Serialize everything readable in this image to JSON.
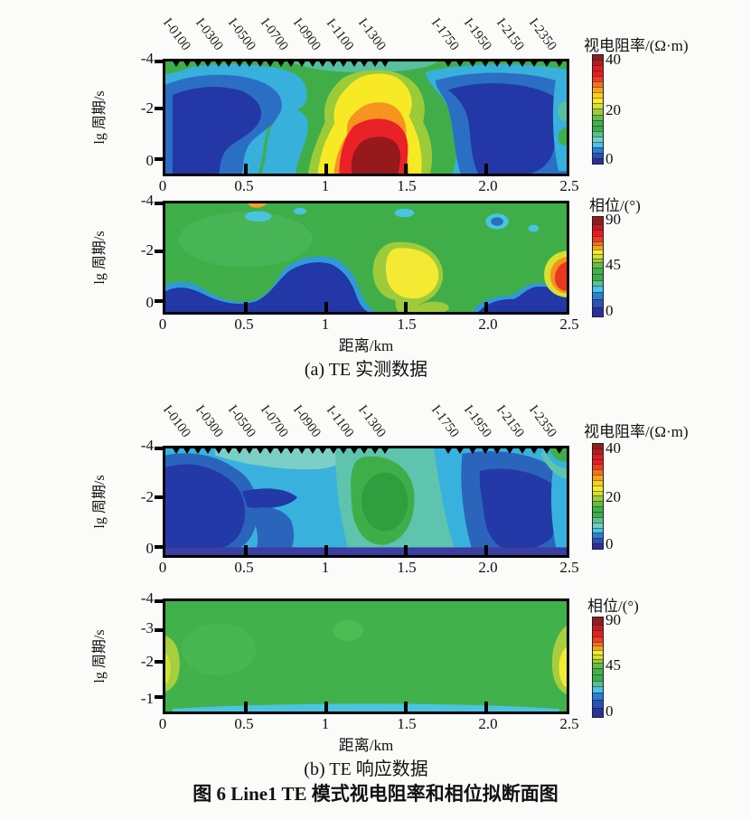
{
  "figure": {
    "caption": "图 6  Line1 TE 模式视电阻率和相位拟断面图",
    "panel_a_label": "(a) TE 实测数据",
    "panel_b_label": "(b) TE 响应数据",
    "x_axis_label": "距离/km",
    "y_axis_label": "lg 周期/s"
  },
  "stations": {
    "labels": [
      {
        "name": "I-0100",
        "km": 0.1
      },
      {
        "name": "I-0300",
        "km": 0.3
      },
      {
        "name": "I-0500",
        "km": 0.5
      },
      {
        "name": "I-0700",
        "km": 0.7
      },
      {
        "name": "I-0900",
        "km": 0.9
      },
      {
        "name": "I-1100",
        "km": 1.1
      },
      {
        "name": "I-1300",
        "km": 1.3
      },
      {
        "name": "I-1750",
        "km": 1.75
      },
      {
        "name": "I-1950",
        "km": 1.95
      },
      {
        "name": "I-2150",
        "km": 2.15
      },
      {
        "name": "I-2350",
        "km": 2.35
      }
    ],
    "triangles_km": {
      "group1": [
        0.07,
        0.135,
        0.2,
        0.265,
        0.33,
        0.395,
        0.46,
        0.525,
        0.59,
        0.655,
        0.72,
        0.785,
        0.85,
        0.915,
        0.98,
        1.045,
        1.11,
        1.175,
        1.24,
        1.305,
        1.37
      ],
      "group2": [
        1.76,
        1.837,
        1.914,
        1.991,
        2.068,
        2.145,
        2.222,
        2.299,
        2.376,
        2.453
      ]
    }
  },
  "colorbars": {
    "resistivity": {
      "title": "视电阻率/(Ω·m)",
      "ticks": [
        {
          "label": "40",
          "pct": 5
        },
        {
          "label": "20",
          "pct": 51
        },
        {
          "label": "0",
          "pct": 95
        }
      ],
      "segments": [
        {
          "c": "#8f1d1f",
          "h": 5
        },
        {
          "c": "#b51d20",
          "h": 5
        },
        {
          "c": "#d91e24",
          "h": 5
        },
        {
          "c": "#e81c24",
          "h": 5
        },
        {
          "c": "#ef3b24",
          "h": 5
        },
        {
          "c": "#f4701f",
          "h": 5
        },
        {
          "c": "#f9a11d",
          "h": 5
        },
        {
          "c": "#f9ce20",
          "h": 5
        },
        {
          "c": "#f7ea25",
          "h": 5
        },
        {
          "c": "#d7df2f",
          "h": 5
        },
        {
          "c": "#9ccb3a",
          "h": 5
        },
        {
          "c": "#69bc41",
          "h": 5
        },
        {
          "c": "#3fb34a",
          "h": 5
        },
        {
          "c": "#3aae47",
          "h": 5
        },
        {
          "c": "#57c28a",
          "h": 5
        },
        {
          "c": "#72ccc3",
          "h": 5
        },
        {
          "c": "#45c3e8",
          "h": 5
        },
        {
          "c": "#2a7fd0",
          "h": 5
        },
        {
          "c": "#2a52b4",
          "h": 5
        },
        {
          "c": "#2b2f9e",
          "h": 5
        }
      ]
    },
    "phase": {
      "title": "相位/(°)",
      "ticks": [
        {
          "label": "90",
          "pct": 4
        },
        {
          "label": "45",
          "pct": 48
        },
        {
          "label": "0",
          "pct": 94
        }
      ],
      "segments": [
        {
          "c": "#8f1d1f",
          "h": 8
        },
        {
          "c": "#c01e22",
          "h": 6
        },
        {
          "c": "#e81c24",
          "h": 6
        },
        {
          "c": "#ef3b24",
          "h": 5
        },
        {
          "c": "#f4701f",
          "h": 4
        },
        {
          "c": "#f9a11d",
          "h": 4
        },
        {
          "c": "#f7ea25",
          "h": 4
        },
        {
          "c": "#d7df2f",
          "h": 4
        },
        {
          "c": "#9ccb3a",
          "h": 4
        },
        {
          "c": "#69bc41",
          "h": 5
        },
        {
          "c": "#3fb34a",
          "h": 6
        },
        {
          "c": "#3aae47",
          "h": 7
        },
        {
          "c": "#57c28a",
          "h": 5
        },
        {
          "c": "#45c3e8",
          "h": 6
        },
        {
          "c": "#2a7fd0",
          "h": 8
        },
        {
          "c": "#2a52b4",
          "h": 8
        },
        {
          "c": "#2b2f9e",
          "h": 10
        }
      ]
    }
  },
  "plots": [
    {
      "name": "a-apparent-resistivity",
      "stations": true,
      "y_ticks": [
        {
          "label": "-4",
          "pct": 0
        },
        {
          "label": "-2",
          "pct": 42
        },
        {
          "label": "0",
          "pct": 87
        }
      ],
      "x_ticks": [
        {
          "label": "0",
          "pct": 0
        },
        {
          "label": "0.5",
          "pct": 20
        },
        {
          "label": "1",
          "pct": 40
        },
        {
          "label": "1.5",
          "pct": 60
        },
        {
          "label": "2.0",
          "pct": 80
        },
        {
          "label": "2.5",
          "pct": 100
        }
      ]
    },
    {
      "name": "a-phase",
      "stations": false,
      "y_ticks": [
        {
          "label": "-4",
          "pct": 0
        },
        {
          "label": "-2",
          "pct": 44
        },
        {
          "label": "0",
          "pct": 90
        }
      ],
      "x_ticks": [
        {
          "label": "0",
          "pct": 0
        },
        {
          "label": "0.5",
          "pct": 20
        },
        {
          "label": "1",
          "pct": 40
        },
        {
          "label": "1.5",
          "pct": 60
        },
        {
          "label": "2.0",
          "pct": 80
        },
        {
          "label": "2.5",
          "pct": 100
        }
      ]
    },
    {
      "name": "b-apparent-resistivity",
      "stations": true,
      "y_ticks": [
        {
          "label": "-4",
          "pct": 0
        },
        {
          "label": "-2",
          "pct": 46
        },
        {
          "label": "0",
          "pct": 92
        }
      ],
      "x_ticks": [
        {
          "label": "0",
          "pct": 0
        },
        {
          "label": "0.5",
          "pct": 20
        },
        {
          "label": "1",
          "pct": 40
        },
        {
          "label": "1.5",
          "pct": 60
        },
        {
          "label": "2.0",
          "pct": 80
        },
        {
          "label": "2.5",
          "pct": 100
        }
      ]
    },
    {
      "name": "b-phase",
      "stations": false,
      "y_ticks": [
        {
          "label": "-4",
          "pct": 0
        },
        {
          "label": "-3",
          "pct": 26
        },
        {
          "label": "-2",
          "pct": 55
        },
        {
          "label": "-1",
          "pct": 87
        }
      ],
      "x_ticks": [
        {
          "label": "0",
          "pct": 0
        },
        {
          "label": "0.5",
          "pct": 20
        },
        {
          "label": "1",
          "pct": 40
        },
        {
          "label": "1.5",
          "pct": 60
        },
        {
          "label": "2.0",
          "pct": 80
        },
        {
          "label": "2.5",
          "pct": 100
        }
      ]
    }
  ],
  "chart_data": [
    {
      "type": "heatmap",
      "panel": "a",
      "title": "TE 实测数据 — 视电阻率拟断面",
      "xlabel": "距离/km",
      "ylabel": "lg 周期/s",
      "x_range": [
        0,
        2.5
      ],
      "x_ticks": [
        0,
        0.5,
        1,
        1.5,
        2.0,
        2.5
      ],
      "y_ticks": [
        -4,
        -2,
        0
      ],
      "colorbar": {
        "label": "视电阻率/(Ω·m)",
        "min": 0,
        "max": 40,
        "tick_values": [
          0,
          20,
          40
        ]
      },
      "features": [
        {
          "desc": "low-resistivity dark-blue zone ~5 Ω·m",
          "x_km": [
            0.05,
            0.75
          ],
          "lg_period": [
            -3.6,
            0.5
          ]
        },
        {
          "desc": "high-resistivity anomaly, dark-red core ~40 Ω·m",
          "x_km": [
            1.0,
            1.4
          ],
          "lg_period": [
            -1.3,
            0.5
          ]
        },
        {
          "desc": "yellow halo ~30 Ω·m rising to lg T = -3.2 above anomaly",
          "x_km": [
            0.9,
            1.5
          ],
          "lg_period": [
            -3.2,
            0.5
          ]
        },
        {
          "desc": "low-resistivity dark-blue zone ~5 Ω·m",
          "x_km": [
            1.7,
            2.4
          ],
          "lg_period": [
            -3.5,
            0.5
          ]
        },
        {
          "desc": "green background ~18 Ω·m with cyan band at right edge and small green spot at x=2.5, lg T≈-1.2"
        }
      ]
    },
    {
      "type": "heatmap",
      "panel": "a",
      "title": "TE 实测数据 — 相位拟断面",
      "xlabel": "距离/km",
      "ylabel": "lg 周期/s",
      "x_range": [
        0,
        2.5
      ],
      "x_ticks": [
        0,
        0.5,
        1,
        1.5,
        2.0,
        2.5
      ],
      "y_ticks": [
        -4,
        -2,
        0
      ],
      "colorbar": {
        "label": "相位/(°)",
        "min": 0,
        "max": 90,
        "tick_values": [
          0,
          45,
          90
        ]
      },
      "features": [
        {
          "desc": "green background ~45°"
        },
        {
          "desc": "low phase ~10° dark-blue band along bottom",
          "x_km": [
            0,
            1.25
          ],
          "lg_period": [
            -1.7,
            0.5
          ]
        },
        {
          "desc": "yellow high ~60°",
          "x_km": [
            1.3,
            1.75
          ],
          "lg_period": [
            -2.2,
            -0.3
          ]
        },
        {
          "desc": "red high ~75° at right edge",
          "x_km": [
            2.4,
            2.5
          ],
          "lg_period": [
            -1.6,
            -0.5
          ]
        },
        {
          "desc": "low phase dark-blue bottom-right",
          "x_km": [
            1.95,
            2.5
          ],
          "lg_period": [
            -0.6,
            0.5
          ]
        },
        {
          "desc": "small cyan/blue spots near top at x≈0.6, 1.5, 2.1"
        }
      ]
    },
    {
      "type": "heatmap",
      "panel": "b",
      "title": "TE 响应数据 — 视电阻率拟断面",
      "xlabel": "距离/km",
      "ylabel": "lg 周期/s",
      "x_range": [
        0,
        2.5
      ],
      "x_ticks": [
        0,
        0.5,
        1,
        1.5,
        2.0,
        2.5
      ],
      "y_ticks": [
        -4,
        -2,
        0
      ],
      "colorbar": {
        "label": "视电阻率/(Ω·m)",
        "min": 0,
        "max": 40,
        "tick_values": [
          0,
          20,
          40
        ]
      },
      "features": [
        {
          "desc": "dark-blue low ~5 Ω·m",
          "x_km": [
            0.0,
            0.6
          ],
          "lg_period": [
            -3.3,
            0.4
          ]
        },
        {
          "desc": "green moderate high ~18 Ω·m column",
          "x_km": [
            1.1,
            1.6
          ],
          "lg_period": [
            -3.3,
            -0.2
          ]
        },
        {
          "desc": "teal/cyan transition bands across section, pale teal near top"
        },
        {
          "desc": "dark-blue low ~5 Ω·m",
          "x_km": [
            1.9,
            2.45
          ],
          "lg_period": [
            -2.9,
            0.4
          ]
        },
        {
          "desc": "green spot at top-right corner x≈2.45, lg T≈-4"
        },
        {
          "desc": "uniform dark blue-violet strip along bottom edge"
        }
      ]
    },
    {
      "type": "heatmap",
      "panel": "b",
      "title": "TE 响应数据 — 相位拟断面",
      "xlabel": "距离/km",
      "ylabel": "lg 周期/s",
      "x_range": [
        0,
        2.5
      ],
      "x_ticks": [
        0,
        0.5,
        1,
        1.5,
        2.0,
        2.5
      ],
      "y_ticks": [
        -4,
        -3,
        -2,
        -1
      ],
      "colorbar": {
        "label": "相位/(°)",
        "min": 0,
        "max": 90,
        "tick_values": [
          0,
          45,
          90
        ]
      },
      "features": [
        {
          "desc": "nearly uniform green ~45° everywhere"
        },
        {
          "desc": "yellow-green patch ~50° at left edge",
          "x_km": [
            0,
            0.1
          ],
          "lg_period": [
            -2.6,
            -1.0
          ]
        },
        {
          "desc": "yellow patch ~58° at right edge",
          "x_km": [
            2.4,
            2.5
          ],
          "lg_period": [
            -2.0,
            -0.9
          ]
        },
        {
          "desc": "thin cyan strip ~30° along bottom edge"
        }
      ]
    }
  ]
}
